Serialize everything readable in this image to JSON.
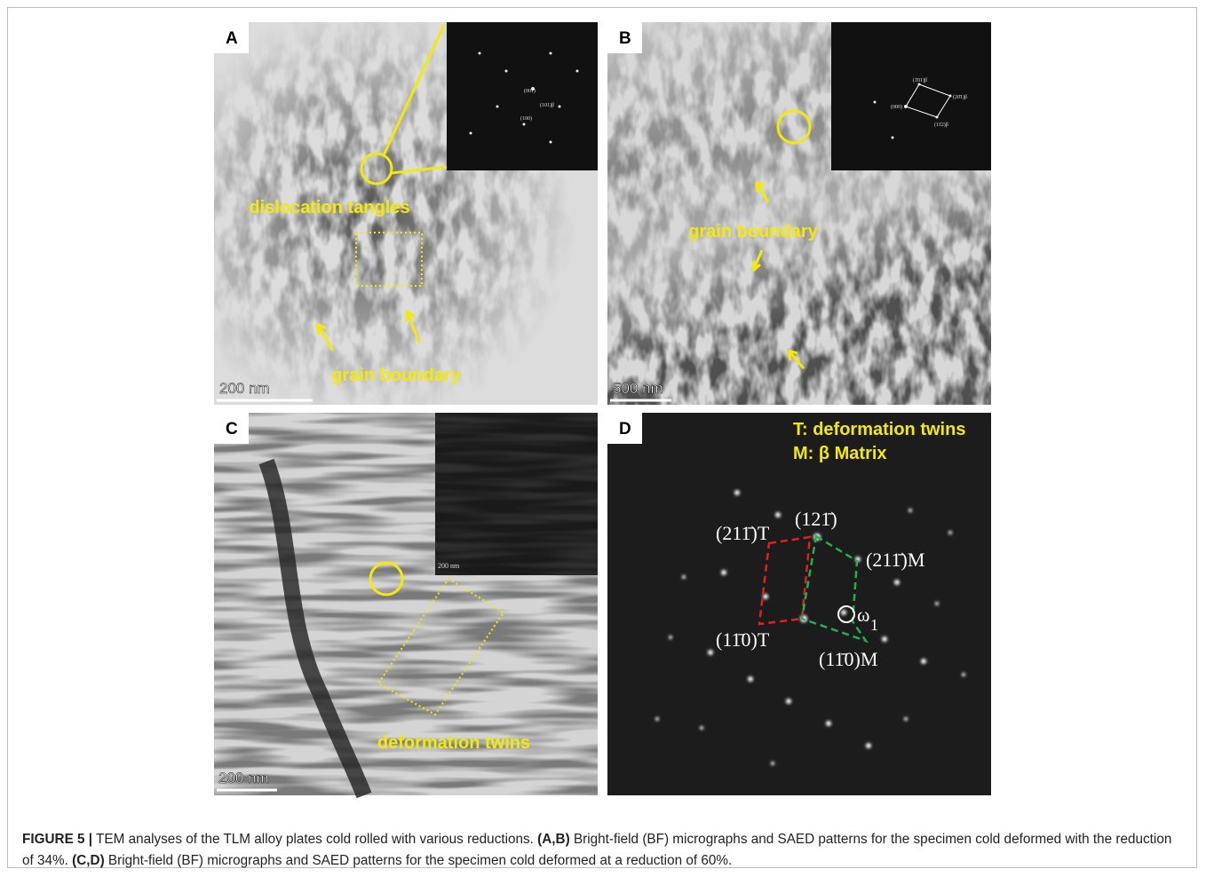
{
  "figure": {
    "panels": [
      {
        "letter": "A",
        "annotations": [
          "dislocation tangles",
          "grain boundary"
        ],
        "scale_bar": "200 nm",
        "inset_labels": [
          "(001)",
          "(101)β",
          "(100)"
        ]
      },
      {
        "letter": "B",
        "annotations": [
          "grain boundary"
        ],
        "scale_bar": "500 nm",
        "inset_labels": [
          "(1̄01)β",
          "(20̄1)β",
          "(000)",
          "(11̄2)β"
        ]
      },
      {
        "letter": "C",
        "annotations": [
          "deformation twins"
        ],
        "scale_bar": "200 nm",
        "inset_labels": [
          "200 nm"
        ]
      },
      {
        "letter": "D",
        "legend": [
          "T: deformation twins",
          "M: β Matrix"
        ],
        "spot_labels": [
          "(211̄)T",
          "(121̄)",
          "(211̄)M",
          "(11̄0)T",
          "(11̄0)M",
          "ω",
          "1"
        ]
      }
    ]
  },
  "caption": {
    "parts": [
      "FIGURE 5 |",
      " TEM analyses of the TLM alloy plates cold rolled with various reductions. ",
      "(A,B)",
      " Bright-field (BF) micrographs and SAED patterns for the specimen cold deformed with the reduction of 34%. ",
      "(C,D)",
      " Bright-field (BF) micrographs and SAED patterns for the specimen cold deformed at a reduction of 60%."
    ]
  }
}
